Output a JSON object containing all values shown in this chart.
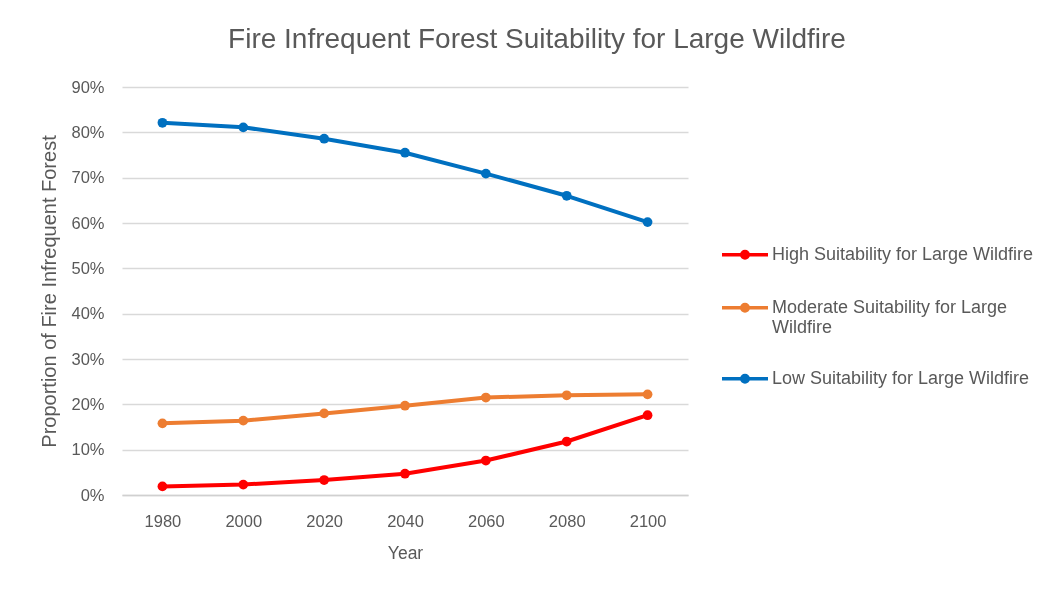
{
  "chart_data": {
    "type": "line",
    "title": "Fire Infrequent Forest Suitability for Large Wildfire",
    "xlabel": "Year",
    "ylabel": "Proportion of Fire Infrequent Forest",
    "categories": [
      "1980",
      "2000",
      "2020",
      "2040",
      "2060",
      "2080",
      "2100"
    ],
    "series": [
      {
        "name": "High Suitability for Large Wildfire",
        "color": "#ff0000",
        "values": [
          1.9,
          2.3,
          3.3,
          4.7,
          7.6,
          11.8,
          17.6
        ]
      },
      {
        "name": "Moderate Suitability for Large Wildfire",
        "color": "#ed7d31",
        "values": [
          15.8,
          16.4,
          18.0,
          19.7,
          21.5,
          22.0,
          22.2
        ]
      },
      {
        "name": "Low Suitability for Large Wildfire",
        "color": "#0070c0",
        "values": [
          82.1,
          81.1,
          78.6,
          75.5,
          70.9,
          66.0,
          60.2
        ]
      }
    ],
    "ylim": [
      0,
      90
    ],
    "yticks": [
      {
        "value": 0,
        "label": "0%"
      },
      {
        "value": 10,
        "label": "10%"
      },
      {
        "value": 20,
        "label": "20%"
      },
      {
        "value": 30,
        "label": "30%"
      },
      {
        "value": 40,
        "label": "40%"
      },
      {
        "value": 50,
        "label": "50%"
      },
      {
        "value": 60,
        "label": "60%"
      },
      {
        "value": 70,
        "label": "70%"
      },
      {
        "value": 80,
        "label": "80%"
      },
      {
        "value": 90,
        "label": "90%"
      }
    ],
    "grid": "y",
    "legend": "right",
    "marker": "circle",
    "line_style": "solid"
  }
}
